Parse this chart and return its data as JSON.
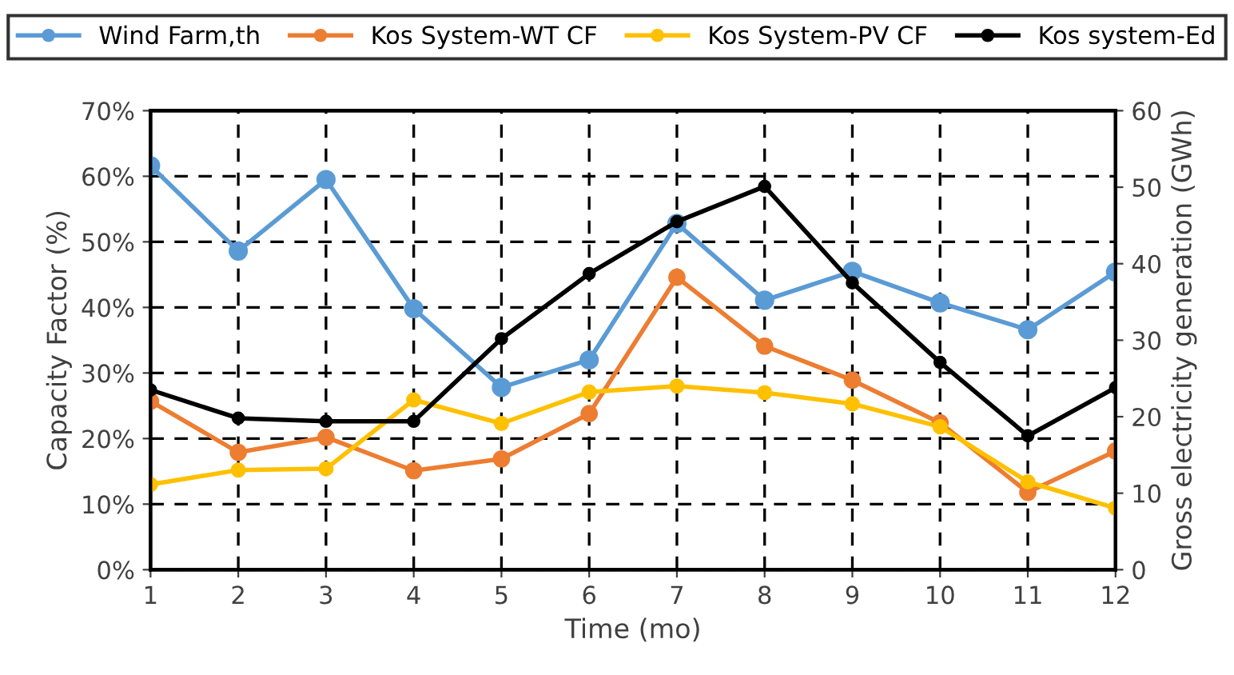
{
  "chart_data": {
    "type": "line",
    "xlabel": "Time (mo)",
    "ylabel": "Capacity Factor (%)",
    "y2label": "Gross electricity generation (GWh)",
    "x": [
      1,
      2,
      3,
      4,
      5,
      6,
      7,
      8,
      9,
      10,
      11,
      12
    ],
    "xlim": [
      1,
      12
    ],
    "xticks": [
      1,
      2,
      3,
      4,
      5,
      6,
      7,
      8,
      9,
      10,
      11,
      12
    ],
    "ylim": [
      0,
      70
    ],
    "yticks": [
      {
        "value": 0,
        "label": "0%"
      },
      {
        "value": 10,
        "label": "10%"
      },
      {
        "value": 20,
        "label": "20%"
      },
      {
        "value": 30,
        "label": "30%"
      },
      {
        "value": 40,
        "label": "40%"
      },
      {
        "value": 50,
        "label": "50%"
      },
      {
        "value": 60,
        "label": "60%"
      },
      {
        "value": 70,
        "label": "70%"
      }
    ],
    "y2lim": [
      0,
      60
    ],
    "y2ticks": [
      0,
      10,
      20,
      30,
      40,
      50,
      60
    ],
    "grid": true,
    "legend": "top",
    "marker": "circle",
    "line_style": "solid",
    "series": [
      {
        "name": "Wind Farm,th",
        "color": "#5b9bd5",
        "values": [
          61.6,
          48.6,
          59.5,
          39.8,
          27.8,
          32.0,
          52.8,
          41.1,
          45.5,
          40.7,
          36.6,
          45.4
        ]
      },
      {
        "name": "Kos System-WT CF",
        "color": "#ed7d31",
        "values": [
          25.7,
          17.9,
          20.2,
          15.1,
          16.9,
          23.8,
          44.6,
          34.1,
          28.9,
          22.4,
          11.8,
          18.1
        ]
      },
      {
        "name": "Kos System-PV CF",
        "color": "#ffc000",
        "values": [
          13.0,
          15.2,
          15.4,
          25.9,
          22.3,
          27.1,
          28.0,
          27.0,
          25.3,
          21.8,
          13.4,
          9.4
        ]
      },
      {
        "name": "Kos system-Ed",
        "color": "#000000",
        "axis": "y2",
        "values": [
          23.5,
          19.8,
          19.4,
          19.4,
          30.2,
          38.7,
          45.5,
          50.1,
          37.5,
          27.1,
          17.5,
          23.8
        ]
      }
    ]
  }
}
